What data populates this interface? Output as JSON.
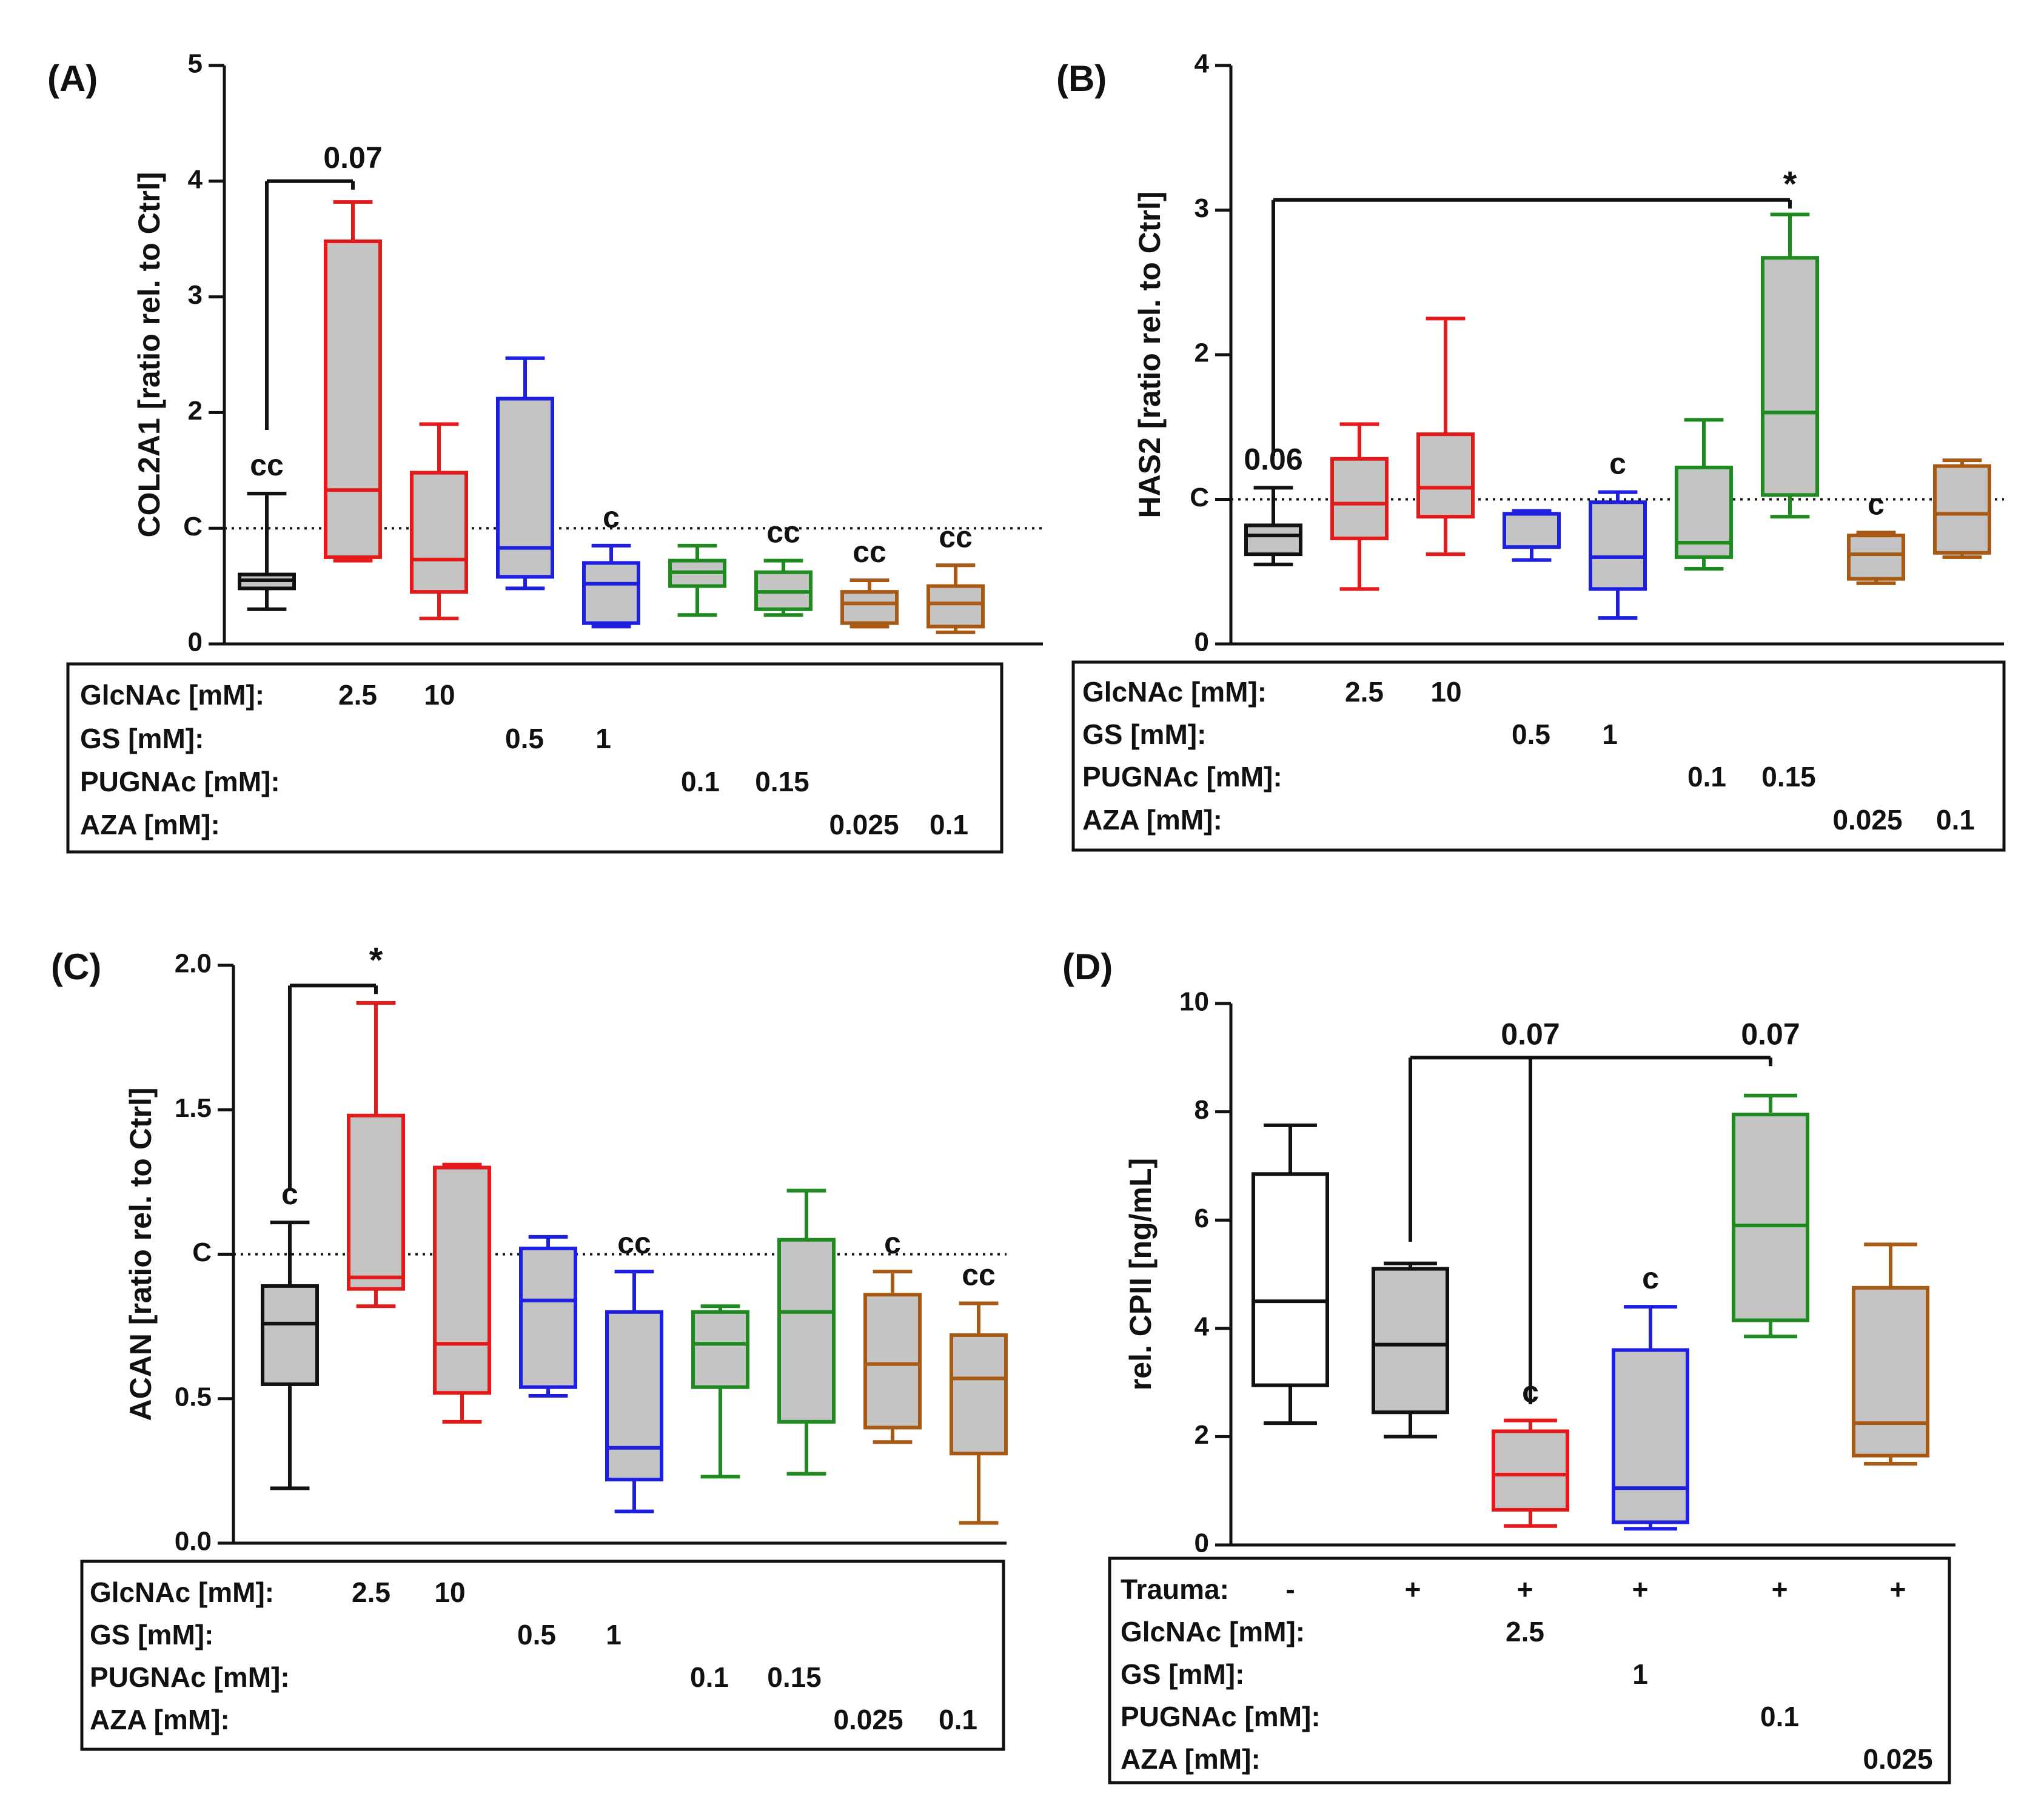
{
  "colors": {
    "ctrl": "#111111",
    "glcnac": "#e31a1c",
    "gs": "#1f1fe0",
    "pugnac": "#1f8a1f",
    "aza": "#a85a14",
    "box_fill": "#c4c4c4",
    "white": "#ffffff"
  },
  "chart_data": [
    {
      "type": "box",
      "panel_label": "(A)",
      "ylabel": "COL2A1 [ratio rel. to Ctrl]",
      "ylim": [
        0,
        5
      ],
      "ticks": [
        "0",
        "C",
        "2",
        "3",
        "4",
        "5"
      ],
      "ref_line": 1,
      "series": [
        {
          "name": "Ctrl",
          "color": "ctrl",
          "fill": "box_fill",
          "min": 0.3,
          "q1": 0.48,
          "median": 0.55,
          "q3": 0.6,
          "max": 1.3,
          "label": "cc"
        },
        {
          "name": "GlcNAc 2.5",
          "color": "glcnac",
          "fill": "box_fill",
          "min": 0.72,
          "q1": 0.75,
          "median": 1.33,
          "q3": 3.48,
          "max": 3.82,
          "label": ""
        },
        {
          "name": "GlcNAc 10",
          "color": "glcnac",
          "fill": "box_fill",
          "min": 0.22,
          "q1": 0.45,
          "median": 0.73,
          "q3": 1.48,
          "max": 1.9,
          "label": ""
        },
        {
          "name": "GS 0.5",
          "color": "gs",
          "fill": "box_fill",
          "min": 0.48,
          "q1": 0.58,
          "median": 0.83,
          "q3": 2.12,
          "max": 2.47,
          "label": ""
        },
        {
          "name": "GS 1",
          "color": "gs",
          "fill": "box_fill",
          "min": 0.15,
          "q1": 0.18,
          "median": 0.52,
          "q3": 0.7,
          "max": 0.85,
          "label": "c"
        },
        {
          "name": "PUGNAc 0.1",
          "color": "pugnac",
          "fill": "box_fill",
          "min": 0.25,
          "q1": 0.5,
          "median": 0.62,
          "q3": 0.72,
          "max": 0.85,
          "label": ""
        },
        {
          "name": "PUGNAc 0.15",
          "color": "pugnac",
          "fill": "box_fill",
          "min": 0.25,
          "q1": 0.3,
          "median": 0.45,
          "q3": 0.62,
          "max": 0.72,
          "label": "cc"
        },
        {
          "name": "AZA 0.025",
          "color": "aza",
          "fill": "box_fill",
          "min": 0.15,
          "q1": 0.18,
          "median": 0.35,
          "q3": 0.45,
          "max": 0.55,
          "label": "cc"
        },
        {
          "name": "AZA 0.1",
          "color": "aza",
          "fill": "box_fill",
          "min": 0.1,
          "q1": 0.15,
          "median": 0.35,
          "q3": 0.5,
          "max": 0.68,
          "label": "cc"
        }
      ],
      "brackets": [
        {
          "from": 0,
          "to": 1,
          "y": 4.0,
          "drop_to": 1.85,
          "text": "0.07",
          "text_at": 1
        }
      ],
      "conditions": [
        {
          "name": "GlcNAc [mM]:",
          "entries": [
            {
              "col": 1,
              "text": "2.5"
            },
            {
              "col": 2,
              "text": "10"
            }
          ]
        },
        {
          "name": "GS [mM]:",
          "entries": [
            {
              "col": 3,
              "text": "0.5"
            },
            {
              "col": 4,
              "text": "1"
            }
          ]
        },
        {
          "name": "PUGNAc [mM]:",
          "entries": [
            {
              "col": 5,
              "text": "0.1"
            },
            {
              "col": 6,
              "text": "0.15"
            }
          ]
        },
        {
          "name": "AZA [mM]:",
          "entries": [
            {
              "col": 7,
              "text": "0.025"
            },
            {
              "col": 8,
              "text": "0.1"
            }
          ]
        }
      ]
    },
    {
      "type": "box",
      "panel_label": "(B)",
      "ylabel": "HAS2 [ratio rel. to Ctrl]",
      "ylim": [
        0,
        4
      ],
      "ticks": [
        "0",
        "C",
        "2",
        "3",
        "4"
      ],
      "ref_line": 1,
      "series": [
        {
          "name": "Ctrl",
          "color": "ctrl",
          "fill": "box_fill",
          "min": 0.55,
          "q1": 0.62,
          "median": 0.75,
          "q3": 0.82,
          "max": 1.08,
          "label": "0.06"
        },
        {
          "name": "GlcNAc 2.5",
          "color": "glcnac",
          "fill": "box_fill",
          "min": 0.38,
          "q1": 0.73,
          "median": 0.97,
          "q3": 1.28,
          "max": 1.52,
          "label": ""
        },
        {
          "name": "GlcNAc 10",
          "color": "glcnac",
          "fill": "box_fill",
          "min": 0.62,
          "q1": 0.88,
          "median": 1.08,
          "q3": 1.45,
          "max": 2.25,
          "label": ""
        },
        {
          "name": "GS 0.5",
          "color": "gs",
          "fill": "box_fill",
          "min": 0.58,
          "q1": 0.67,
          "median": 0.9,
          "q3": 0.9,
          "max": 0.92,
          "label": ""
        },
        {
          "name": "GS 1",
          "color": "gs",
          "fill": "box_fill",
          "min": 0.18,
          "q1": 0.38,
          "median": 0.6,
          "q3": 0.98,
          "max": 1.05,
          "label": "c"
        },
        {
          "name": "PUGNAc 0.1",
          "color": "pugnac",
          "fill": "box_fill",
          "min": 0.52,
          "q1": 0.6,
          "median": 0.7,
          "q3": 1.22,
          "max": 1.55,
          "label": ""
        },
        {
          "name": "PUGNAc 0.15",
          "color": "pugnac",
          "fill": "box_fill",
          "min": 0.88,
          "q1": 1.03,
          "median": 1.6,
          "q3": 2.67,
          "max": 2.97,
          "label": "*"
        },
        {
          "name": "AZA 0.025",
          "color": "aza",
          "fill": "box_fill",
          "min": 0.42,
          "q1": 0.45,
          "median": 0.62,
          "q3": 0.75,
          "max": 0.77,
          "label": "c"
        },
        {
          "name": "AZA 0.1",
          "color": "aza",
          "fill": "box_fill",
          "min": 0.6,
          "q1": 0.63,
          "median": 0.9,
          "q3": 1.23,
          "max": 1.27,
          "label": ""
        }
      ],
      "brackets": [
        {
          "from": 0,
          "to": 6,
          "y": 3.07,
          "drop_to": 1.3,
          "text": "",
          "text_at": 6
        }
      ],
      "conditions": [
        {
          "name": "GlcNAc [mM]:",
          "entries": [
            {
              "col": 1,
              "text": "2.5"
            },
            {
              "col": 2,
              "text": "10"
            }
          ]
        },
        {
          "name": "GS [mM]:",
          "entries": [
            {
              "col": 3,
              "text": "0.5"
            },
            {
              "col": 4,
              "text": "1"
            }
          ]
        },
        {
          "name": "PUGNAc [mM]:",
          "entries": [
            {
              "col": 5,
              "text": "0.1"
            },
            {
              "col": 6,
              "text": "0.15"
            }
          ]
        },
        {
          "name": "AZA [mM]:",
          "entries": [
            {
              "col": 7,
              "text": "0.025"
            },
            {
              "col": 8,
              "text": "0.1"
            }
          ]
        }
      ]
    },
    {
      "type": "box",
      "panel_label": "(C)",
      "ylabel": "ACAN [ratio rel. to Ctrl]",
      "ylim": [
        0,
        2
      ],
      "ticks": [
        "0.0",
        "0.5",
        "C",
        "1.5",
        "2.0"
      ],
      "ref_line": 1,
      "series": [
        {
          "name": "Ctrl",
          "color": "ctrl",
          "fill": "box_fill",
          "min": 0.19,
          "q1": 0.55,
          "median": 0.76,
          "q3": 0.89,
          "max": 1.11,
          "label": "c"
        },
        {
          "name": "GlcNAc 2.5",
          "color": "glcnac",
          "fill": "box_fill",
          "min": 0.82,
          "q1": 0.88,
          "median": 0.92,
          "q3": 1.48,
          "max": 1.87,
          "label": ""
        },
        {
          "name": "GlcNAc 10",
          "color": "glcnac",
          "fill": "box_fill",
          "min": 0.42,
          "q1": 0.52,
          "median": 0.69,
          "q3": 1.3,
          "max": 1.31,
          "label": ""
        },
        {
          "name": "GS 0.5",
          "color": "gs",
          "fill": "box_fill",
          "min": 0.51,
          "q1": 0.54,
          "median": 0.84,
          "q3": 1.02,
          "max": 1.06,
          "label": ""
        },
        {
          "name": "GS 1",
          "color": "gs",
          "fill": "box_fill",
          "min": 0.11,
          "q1": 0.22,
          "median": 0.33,
          "q3": 0.8,
          "max": 0.94,
          "label": "cc"
        },
        {
          "name": "PUGNAc 0.1",
          "color": "pugnac",
          "fill": "box_fill",
          "min": 0.23,
          "q1": 0.54,
          "median": 0.69,
          "q3": 0.8,
          "max": 0.82,
          "label": ""
        },
        {
          "name": "PUGNAc 0.15",
          "color": "pugnac",
          "fill": "box_fill",
          "min": 0.24,
          "q1": 0.42,
          "median": 0.8,
          "q3": 1.05,
          "max": 1.22,
          "label": ""
        },
        {
          "name": "AZA 0.025",
          "color": "aza",
          "fill": "box_fill",
          "min": 0.35,
          "q1": 0.4,
          "median": 0.62,
          "q3": 0.86,
          "max": 0.94,
          "label": "c"
        },
        {
          "name": "AZA 0.1",
          "color": "aza",
          "fill": "box_fill",
          "min": 0.07,
          "q1": 0.31,
          "median": 0.57,
          "q3": 0.72,
          "max": 0.83,
          "label": "cc"
        }
      ],
      "brackets": [
        {
          "from": 0,
          "to": 1,
          "y": 1.93,
          "drop_to": 1.22,
          "text": "*",
          "text_at": 1
        }
      ],
      "conditions": [
        {
          "name": "GlcNAc [mM]:",
          "entries": [
            {
              "col": 1,
              "text": "2.5"
            },
            {
              "col": 2,
              "text": "10"
            }
          ]
        },
        {
          "name": "GS [mM]:",
          "entries": [
            {
              "col": 3,
              "text": "0.5"
            },
            {
              "col": 4,
              "text": "1"
            }
          ]
        },
        {
          "name": "PUGNAc [mM]:",
          "entries": [
            {
              "col": 5,
              "text": "0.1"
            },
            {
              "col": 6,
              "text": "0.15"
            }
          ]
        },
        {
          "name": "AZA [mM]:",
          "entries": [
            {
              "col": 7,
              "text": "0.025"
            },
            {
              "col": 8,
              "text": "0.1"
            }
          ]
        }
      ]
    },
    {
      "type": "box",
      "panel_label": "(D)",
      "ylabel": "rel. CPII [ng/mL]",
      "ylim": [
        0,
        10
      ],
      "ticks": [
        "0",
        "2",
        "4",
        "6",
        "8",
        "10"
      ],
      "ref_line": null,
      "series": [
        {
          "name": "Ctrl -",
          "color": "ctrl",
          "fill": "white",
          "min": 2.25,
          "q1": 2.95,
          "median": 4.5,
          "q3": 6.85,
          "max": 7.75,
          "label": ""
        },
        {
          "name": "Trauma",
          "color": "ctrl",
          "fill": "box_fill",
          "min": 2.0,
          "q1": 2.45,
          "median": 3.7,
          "q3": 5.1,
          "max": 5.2,
          "label": ""
        },
        {
          "name": "GlcNAc 2.5",
          "color": "glcnac",
          "fill": "box_fill",
          "min": 0.35,
          "q1": 0.65,
          "median": 1.3,
          "q3": 2.1,
          "max": 2.3,
          "label": "c"
        },
        {
          "name": "GS 1",
          "color": "gs",
          "fill": "box_fill",
          "min": 0.3,
          "q1": 0.42,
          "median": 1.05,
          "q3": 3.6,
          "max": 4.4,
          "label": "c"
        },
        {
          "name": "PUGNAc 0.1",
          "color": "pugnac",
          "fill": "box_fill",
          "min": 3.85,
          "q1": 4.15,
          "median": 5.9,
          "q3": 7.95,
          "max": 8.3,
          "label": ""
        },
        {
          "name": "AZA 0.025",
          "color": "aza",
          "fill": "box_fill",
          "min": 1.5,
          "q1": 1.65,
          "median": 2.25,
          "q3": 4.75,
          "max": 5.55,
          "label": ""
        }
      ],
      "brackets": [
        {
          "from": 1,
          "to": 4,
          "y": 9.0,
          "drop_to": 5.6,
          "text": "0.07",
          "text_at": 4
        },
        {
          "from": 2,
          "to": 2,
          "y": 9.0,
          "drop_to": 2.6,
          "text": "0.07",
          "text_at": 2
        }
      ],
      "conditions": [
        {
          "name": "Trauma:",
          "entries": [
            {
              "col": 0,
              "text": "-"
            },
            {
              "col": 1,
              "text": "+"
            },
            {
              "col": 2,
              "text": "+"
            },
            {
              "col": 3,
              "text": "+"
            },
            {
              "col": 4,
              "text": "+"
            },
            {
              "col": 5,
              "text": "+"
            }
          ]
        },
        {
          "name": "GlcNAc [mM]:",
          "entries": [
            {
              "col": 2,
              "text": "2.5"
            }
          ]
        },
        {
          "name": "GS [mM]:",
          "entries": [
            {
              "col": 3,
              "text": "1"
            }
          ]
        },
        {
          "name": "PUGNAc [mM]:",
          "entries": [
            {
              "col": 4,
              "text": "0.1"
            }
          ]
        },
        {
          "name": "AZA [mM]:",
          "entries": [
            {
              "col": 5,
              "text": "0.025"
            }
          ]
        }
      ]
    }
  ]
}
